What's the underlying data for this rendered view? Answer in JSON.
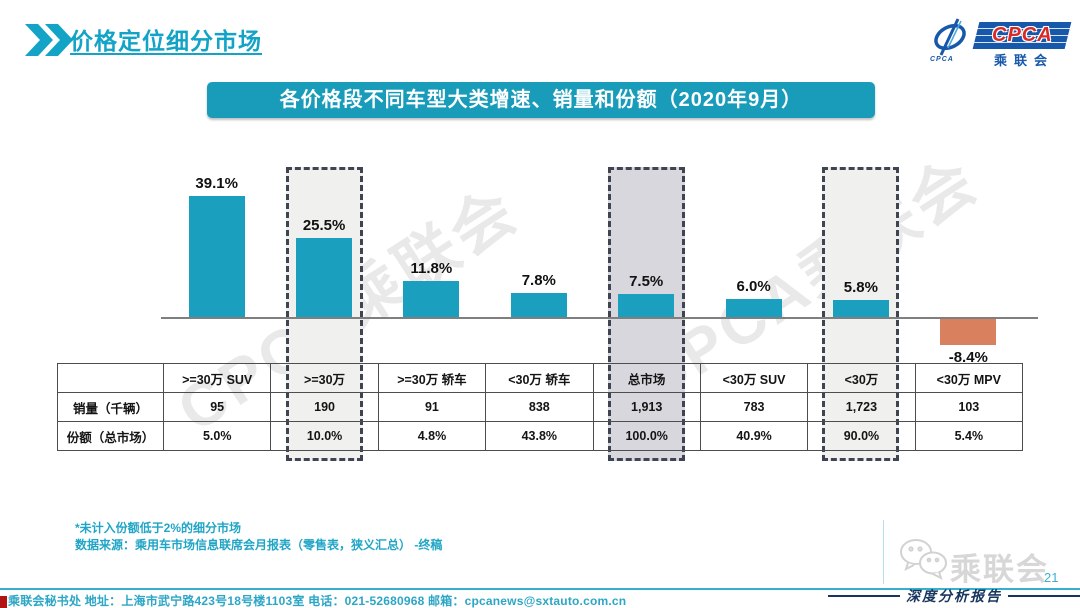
{
  "page": {
    "title": "价格定位细分市场",
    "banner": "各价格段不同车型大类增速、销量和份额（2020年9月）",
    "page_number": "21",
    "report_label": "深度分析报告",
    "watermark_text": "CPCA乘联会",
    "wechat_watermark_label": "乘联会"
  },
  "logo": {
    "cpca_text": "CPCA",
    "cn_text": "乘联会",
    "emblem_sub_text": "CPCA"
  },
  "colors": {
    "teal_bar": "#1a9fbe",
    "orange_bar": "#d9805e",
    "banner_teal": "#199cba",
    "title_teal": "#12a3c6",
    "navy": "#17355e",
    "highlight_light": "#f0f0ee",
    "highlight_dark": "#d8d7dd"
  },
  "chart_data": {
    "type": "bar",
    "title": "各价格段不同车型大类增速、销量和份额（2020年9月）",
    "categories": [
      ">=30万 SUV",
      ">=30万",
      ">=30万 轿车",
      "<30万 轿车",
      "总市场",
      "<30万 SUV",
      "<30万",
      "<30万 MPV"
    ],
    "series": [
      {
        "name": "增速",
        "values": [
          39.1,
          25.5,
          11.8,
          7.8,
          7.5,
          6.0,
          5.8,
          -8.4
        ],
        "labels": [
          "39.1%",
          "25.5%",
          "11.8%",
          "7.8%",
          "7.5%",
          "6.0%",
          "5.8%",
          "-8.4%"
        ]
      },
      {
        "name": "销量（千辆）",
        "values": [
          95,
          190,
          91,
          838,
          1913,
          783,
          1723,
          103
        ]
      },
      {
        "name": "份额（总市场）",
        "values": [
          5.0,
          10.0,
          4.8,
          43.8,
          100.0,
          40.9,
          90.0,
          5.4
        ]
      }
    ],
    "highlighted_categories": [
      ">=30万",
      "总市场",
      "<30万"
    ],
    "highlight_boxes": [
      {
        "index": 1,
        "fill": "#f0f0ee"
      },
      {
        "index": 4,
        "fill": "#d8d7dd"
      },
      {
        "index": 6,
        "fill": "#f0f0ee"
      }
    ],
    "bar_color": "#1a9fbe",
    "negative_bar_color": "#d9805e",
    "grid": false,
    "legend": false,
    "ylabel": "",
    "xlabel": "",
    "ylim": [
      -10,
      45
    ]
  },
  "table": {
    "columns": [
      ">=30万 SUV",
      ">=30万",
      ">=30万 轿车",
      "<30万 轿车",
      "总市场",
      "<30万 SUV",
      "<30万",
      "<30万 MPV"
    ],
    "row_labels": [
      "销量（千辆）",
      "份额（总市场）"
    ],
    "sales": [
      "95",
      "190",
      "91",
      "838",
      "1,913",
      "783",
      "1,723",
      "103"
    ],
    "share": [
      "5.0%",
      "10.0%",
      "4.8%",
      "43.8%",
      "100.0%",
      "40.9%",
      "90.0%",
      "5.4%"
    ]
  },
  "notes": {
    "line1": "*未计入份额低于2%的细分市场",
    "line2": "数据来源：乘用车市场信息联席会月报表（零售表，狭义汇总）  -终稿"
  },
  "footer": {
    "text": "乘联会秘书处   地址：上海市武宁路423号18号楼1103室   电话：021-52680968   邮箱：cpcanews@sxtauto.com.cn"
  }
}
